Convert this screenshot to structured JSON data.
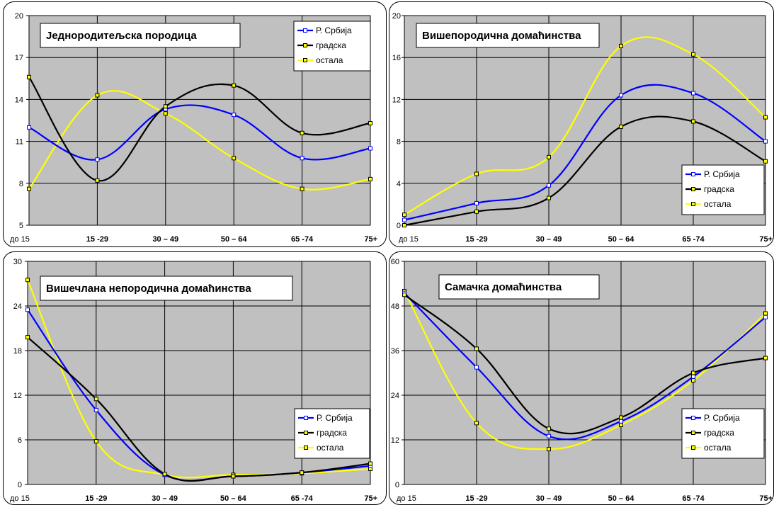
{
  "colors": {
    "plot_bg": "#c0c0c0",
    "grid": "#000000",
    "srbija": "#0000ff",
    "gradska": "#000000",
    "ostala": "#ffff00"
  },
  "chart_data": [
    {
      "type": "line",
      "title": "Једнородитељска породица",
      "categories": [
        "до 15",
        "15 -29",
        "30 – 49",
        "50 – 64",
        "65 -74",
        "75+"
      ],
      "yticks": [
        5,
        8,
        11,
        14,
        17,
        20
      ],
      "ylim": [
        5,
        20
      ],
      "legend_position": "top-right",
      "series": [
        {
          "name": "Р. Србија",
          "values": [
            12.0,
            9.7,
            13.3,
            12.9,
            9.8,
            10.5
          ]
        },
        {
          "name": "градска",
          "values": [
            15.6,
            8.2,
            13.5,
            15.0,
            11.6,
            12.3
          ]
        },
        {
          "name": "остала",
          "values": [
            7.6,
            14.3,
            13.0,
            9.8,
            7.6,
            8.3
          ]
        }
      ]
    },
    {
      "type": "line",
      "title": "Вишепородична домаћинства",
      "categories": [
        "до 15",
        "15 -29",
        "30 – 49",
        "50 – 64",
        "65 -74",
        "75+"
      ],
      "yticks": [
        0,
        4,
        8,
        12,
        16,
        20
      ],
      "ylim": [
        0,
        20
      ],
      "legend_position": "bottom-right",
      "series": [
        {
          "name": "Р. Србија",
          "values": [
            0.5,
            2.1,
            3.8,
            12.4,
            12.6,
            8.0
          ]
        },
        {
          "name": "градска",
          "values": [
            0.0,
            1.3,
            2.6,
            9.4,
            9.9,
            6.1
          ]
        },
        {
          "name": "остала",
          "values": [
            1.0,
            4.9,
            6.5,
            17.1,
            16.3,
            10.3
          ]
        }
      ]
    },
    {
      "type": "line",
      "title": "Вишечлана непородична домаћинства",
      "categories": [
        "до 15",
        "15 -29",
        "30 – 49",
        "50 – 64",
        "65 -74",
        "75+"
      ],
      "yticks": [
        0,
        6,
        12,
        18,
        24,
        30
      ],
      "ylim": [
        0,
        30
      ],
      "legend_position": "bottom-right",
      "series": [
        {
          "name": "Р. Србија",
          "values": [
            23.5,
            10.0,
            1.3,
            1.1,
            1.6,
            2.5
          ]
        },
        {
          "name": "градска",
          "values": [
            19.8,
            11.5,
            1.4,
            1.1,
            1.6,
            2.8
          ]
        },
        {
          "name": "остала",
          "values": [
            27.5,
            5.8,
            1.3,
            1.3,
            1.5,
            2.1
          ]
        }
      ]
    },
    {
      "type": "line",
      "title": "Самачка домаћинства",
      "categories": [
        "до 15",
        "15 -29",
        "30 – 49",
        "50 – 64",
        "65 -74",
        "75+"
      ],
      "yticks": [
        0,
        12,
        24,
        36,
        48,
        60
      ],
      "ylim": [
        0,
        60
      ],
      "legend_position": "bottom-right",
      "series": [
        {
          "name": "Р. Србија",
          "values": [
            51.5,
            31.5,
            13.0,
            17.0,
            29.0,
            45.0
          ]
        },
        {
          "name": "градска",
          "values": [
            51.0,
            36.5,
            15.0,
            18.0,
            30.0,
            34.0
          ]
        },
        {
          "name": "остала",
          "values": [
            52.0,
            16.5,
            9.5,
            16.0,
            28.0,
            46.0
          ]
        }
      ]
    }
  ]
}
